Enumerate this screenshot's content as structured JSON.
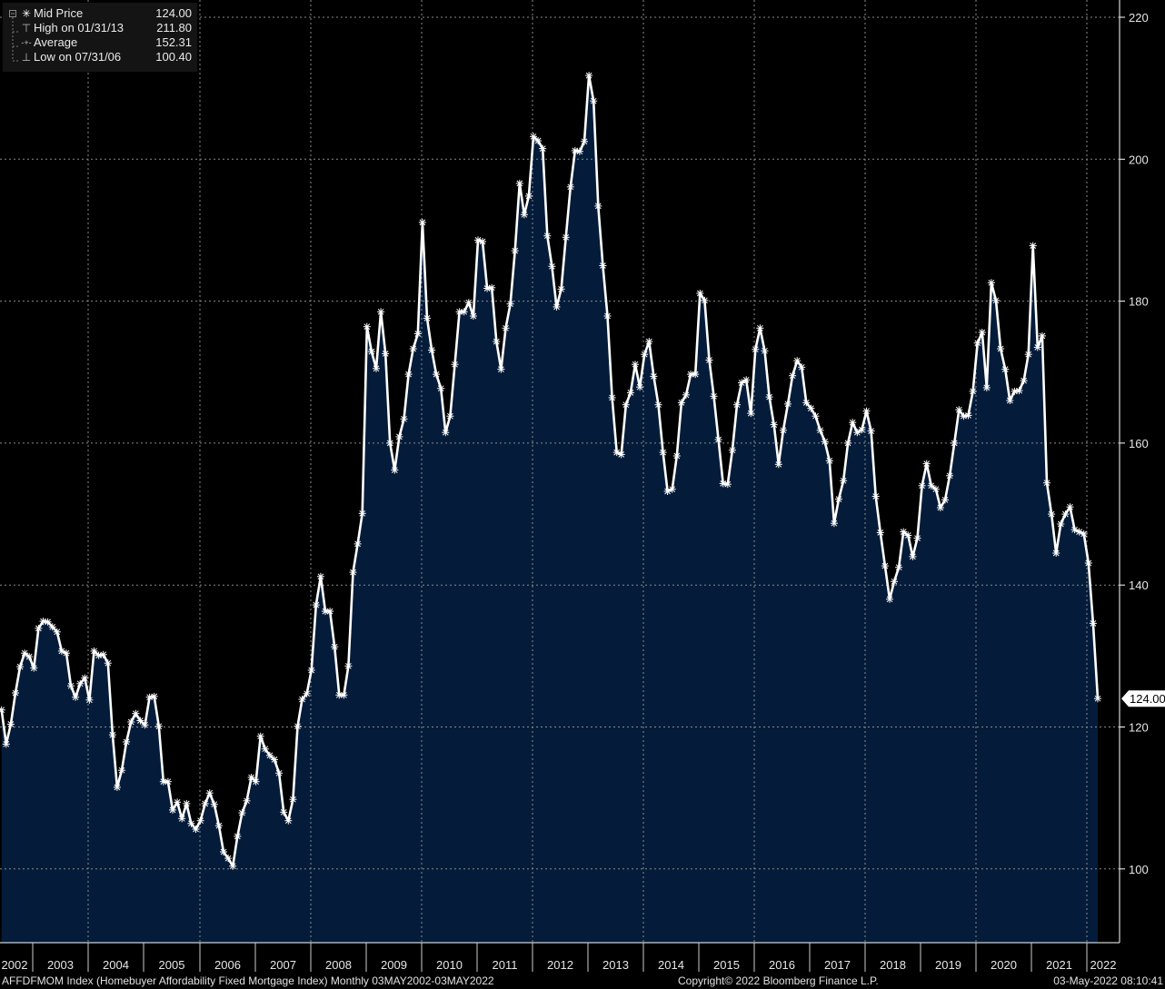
{
  "legend": {
    "rows": [
      {
        "icon": "asterisk-icon",
        "glyph": "✳",
        "label": "Mid Price",
        "value": "124.00"
      },
      {
        "icon": "high-marker-icon",
        "glyph": "⊤",
        "label": "High on 01/31/13",
        "value": "211.80"
      },
      {
        "icon": "average-line-icon",
        "glyph": "-+-",
        "label": "Average",
        "value": "152.31"
      },
      {
        "icon": "low-marker-icon",
        "glyph": "⊥",
        "label": "Low on 07/31/06",
        "value": "100.40"
      }
    ]
  },
  "footer": {
    "description": "AFFDFMOM Index (Homebuyer Affordability Fixed Mortgage Index)  Monthly 03MAY2002-03MAY2022",
    "copyright": "Copyright© 2022 Bloomberg Finance L.P.",
    "timestamp": "03-May-2022 08:10:41"
  },
  "colors": {
    "fill": "#041c3a",
    "line": "#ffffff",
    "grid": "#8a8a8a",
    "background": "#000000"
  },
  "chart_data": {
    "type": "area",
    "title": "AFFDFMOM Index (Homebuyer Affordability Fixed Mortgage Index)",
    "frequency": "Monthly",
    "series": [
      {
        "name": "Mid Price",
        "last_value_label": "124.00",
        "values": [
          122.4,
          117.6,
          120.4,
          124.8,
          128.5,
          130.4,
          129.9,
          128.3,
          133.9,
          134.9,
          134.8,
          134.1,
          133.4,
          130.7,
          130.4,
          125.8,
          124.2,
          126.1,
          126.9,
          123.8,
          130.7,
          130.1,
          130.2,
          129.0,
          118.9,
          111.5,
          113.9,
          117.9,
          120.7,
          121.9,
          120.9,
          120.3,
          124.2,
          124.3,
          120.1,
          112.3,
          112.3,
          108.3,
          109.4,
          107.1,
          109.2,
          106.4,
          105.6,
          106.8,
          109.2,
          110.7,
          109.1,
          106.1,
          102.4,
          101.5,
          100.4,
          104.6,
          107.9,
          109.6,
          112.9,
          112.3,
          118.7,
          116.9,
          116.0,
          115.4,
          113.5,
          108.0,
          106.8,
          109.8,
          120.1,
          123.9,
          124.7,
          128.0,
          137.2,
          141.2,
          136.3,
          136.3,
          131.3,
          124.5,
          124.5,
          128.6,
          141.8,
          145.8,
          150.1,
          176.4,
          172.9,
          170.5,
          178.5,
          172.6,
          160.0,
          156.2,
          160.9,
          163.4,
          169.7,
          173.3,
          175.4,
          191.1,
          177.6,
          173.1,
          169.7,
          167.7,
          161.5,
          163.8,
          171.1,
          178.5,
          178.5,
          179.8,
          177.9,
          188.6,
          188.4,
          181.8,
          181.9,
          174.3,
          170.4,
          176.2,
          179.6,
          187.1,
          196.6,
          192.2,
          194.8,
          203.2,
          202.6,
          201.5,
          189.2,
          184.9,
          179.2,
          181.7,
          189.0,
          196.1,
          201.2,
          201.1,
          202.5,
          211.8,
          208.2,
          193.4,
          185.0,
          177.9,
          166.4,
          158.7,
          158.4,
          165.4,
          167.1,
          171.1,
          167.9,
          172.5,
          174.3,
          169.4,
          165.4,
          158.7,
          153.2,
          153.5,
          158.2,
          165.7,
          166.8,
          169.7,
          169.7,
          181.1,
          180.1,
          171.7,
          166.6,
          160.5,
          154.3,
          154.2,
          159.0,
          165.4,
          168.5,
          168.9,
          164.2,
          173.2,
          176.2,
          173.0,
          166.5,
          162.6,
          157.0,
          161.8,
          165.5,
          169.5,
          171.6,
          170.7,
          165.7,
          164.9,
          163.8,
          161.8,
          160.2,
          157.5,
          148.7,
          152.1,
          154.7,
          160.0,
          162.9,
          161.5,
          161.9,
          164.5,
          161.7,
          152.5,
          147.4,
          142.7,
          138.0,
          140.5,
          142.5,
          147.5,
          147.0,
          144.0,
          146.6,
          154.0,
          157.1,
          154.0,
          153.5,
          150.9,
          152.0,
          155.4,
          160.0,
          164.7,
          163.8,
          163.9,
          167.3,
          174.1,
          175.6,
          167.8,
          182.6,
          180.1,
          173.3,
          170.4,
          166.0,
          167.3,
          167.4,
          168.8,
          172.5,
          187.8,
          173.5,
          175.1,
          154.4,
          150.0,
          144.5,
          148.6,
          150.0,
          151.0,
          147.8,
          147.5,
          147.2,
          143.1,
          134.6,
          124.0
        ]
      }
    ],
    "x_tick_labels": [
      "2002",
      "2003",
      "2004",
      "2005",
      "2006",
      "2007",
      "2008",
      "2009",
      "2010",
      "2011",
      "2012",
      "2013",
      "2014",
      "2015",
      "2016",
      "2017",
      "2018",
      "2019",
      "2020",
      "2021",
      "2022"
    ],
    "y_tick_labels": [
      "100",
      "120",
      "140",
      "160",
      "180",
      "200",
      "220"
    ],
    "y_ticks": [
      100,
      120,
      140,
      160,
      180,
      200,
      220
    ],
    "ylim": [
      89.6,
      222.4
    ],
    "y_axis_side": "right",
    "grid": true,
    "legend_position": "top-left",
    "statistics": {
      "high": 211.8,
      "high_date": "01/31/13",
      "average": 152.31,
      "low": 100.4,
      "low_date": "07/31/06",
      "last": 124.0
    }
  }
}
